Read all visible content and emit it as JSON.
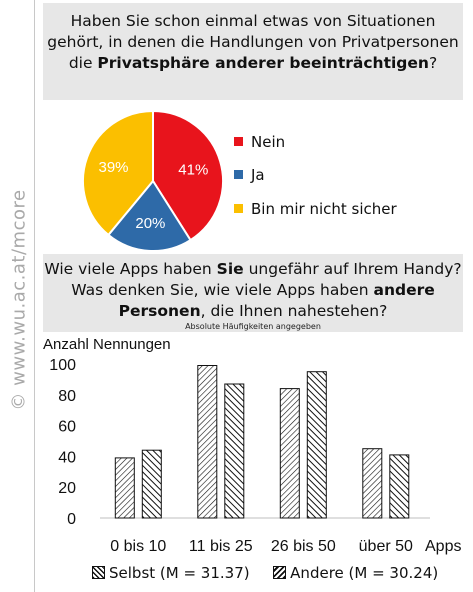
{
  "watermark": "© www.wu.ac.at/mcore",
  "question1": {
    "pre": "Haben Sie schon einmal etwas von Situationen gehört, in denen die Handlungen von Privatpersonen die ",
    "bold": "Privatsphäre anderer beeinträchtigen",
    "post": "?"
  },
  "question2": {
    "part1": "Wie viele Apps haben ",
    "bold1": "Sie",
    "part2": " ungefähr auf Ihrem Handy? Was denken Sie, wie viele Apps haben ",
    "bold2": "andere Personen",
    "part3": ", die Ihnen nahestehen?",
    "note": "Absolute Häufigkeiten angegeben"
  },
  "chart_data": [
    {
      "type": "pie",
      "slices": [
        {
          "label": "Nein",
          "value": 41,
          "display": "41%",
          "color": "#e8141c"
        },
        {
          "label": "Ja",
          "value": 20,
          "display": "20%",
          "color": "#2e6aa8"
        },
        {
          "label": "Bin mir nicht sicher",
          "value": 39,
          "display": "39%",
          "color": "#fbbf00"
        }
      ]
    },
    {
      "type": "bar",
      "ylabel": "Anzahl Nennungen",
      "xlabel": "Apps",
      "categories": [
        "0 bis 10",
        "11 bis 25",
        "26 bis 50",
        "über 50"
      ],
      "ylim": [
        0,
        100
      ],
      "yticks": [
        0,
        20,
        40,
        60,
        80,
        100
      ],
      "grid": false,
      "series": [
        {
          "name": "Selbst (M = 31.37)",
          "values": [
            39,
            99,
            84,
            45
          ],
          "pattern": "hatch-forward"
        },
        {
          "name": "Andere (M = 30.24)",
          "values": [
            44,
            87,
            95,
            41
          ],
          "pattern": "hatch-backward"
        }
      ]
    }
  ]
}
